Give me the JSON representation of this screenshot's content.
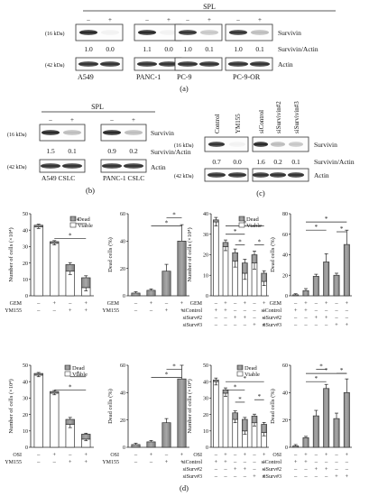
{
  "panel_a": {
    "label": "(a)",
    "treatment": "SPL",
    "signs": [
      "–",
      "+"
    ],
    "kda_survivin": "(16 kDa)",
    "kda_actin": "(42 kDa)",
    "row_survivin": "Survivin",
    "row_ratio": "Survivin/Actin",
    "row_actin": "Actin",
    "cell_lines": [
      "A549",
      "PANC-1",
      "PC-9",
      "PC-9-OR"
    ],
    "ratios": [
      [
        "1.0",
        "0.0"
      ],
      [
        "1.1",
        "0.0"
      ],
      [
        "1.0",
        "0.1"
      ],
      [
        "1.0",
        "0.1"
      ]
    ]
  },
  "panel_b": {
    "label": "(b)",
    "treatment": "SPL",
    "signs": [
      "–",
      "+"
    ],
    "kda_survivin": "(16 kDa)",
    "kda_actin": "(42 kDa)",
    "row_survivin": "Survivin",
    "row_ratio": "Survivin/Actin",
    "row_actin": "Actin",
    "cell_lines": [
      "A549 CSLC",
      "PANC-1 CSLC"
    ],
    "ratios": [
      [
        "1.5",
        "0.1"
      ],
      [
        "0.9",
        "0.2"
      ]
    ]
  },
  "panel_c": {
    "label": "(c)",
    "lane_labels": [
      "Control",
      "YM155",
      "siControl",
      "siSurvivin#2",
      "siSurvivin#3"
    ],
    "kda_survivin": "(16 kDa)",
    "kda_actin": "(42 kDa)",
    "row_survivin": "Survivin",
    "row_ratio": "Survivin/Actin",
    "row_actin": "Actin",
    "ratios": [
      "0.7",
      "0.0",
      "1.6",
      "0.2",
      "0.1"
    ]
  },
  "panel_d": {
    "label": "(d)",
    "legend_dead": "Dead",
    "legend_viable": "Viable",
    "ylabel_number": "Number of cells (×10⁴)",
    "ylabel_dead": "Dead cells (%)",
    "plus": "+",
    "minus": "–",
    "star": "*"
  },
  "chart_data": [
    {
      "type": "bar",
      "id": "gem-ym155-number",
      "stacked": true,
      "ylabel": "Number of cells (×10⁴)",
      "ylim": [
        0,
        50
      ],
      "yticks": [
        0,
        10,
        20,
        30,
        40,
        50
      ],
      "conditions": [
        {
          "name": "GEM",
          "signs": [
            "–",
            "+",
            "–",
            "+"
          ]
        },
        {
          "name": "YM155",
          "signs": [
            "–",
            "–",
            "+",
            "+"
          ]
        }
      ],
      "series": [
        {
          "name": "Viable",
          "values": [
            42,
            32,
            15,
            5
          ]
        },
        {
          "name": "Dead",
          "values": [
            1,
            1,
            4,
            6
          ]
        }
      ],
      "errors": [
        1,
        1,
        2,
        2
      ],
      "significance": [
        [
          1,
          3,
          0.3
        ],
        [
          2,
          3,
          0.12
        ]
      ]
    },
    {
      "type": "bar",
      "id": "gem-ym155-dead",
      "ylabel": "Dead cells (%)",
      "ylim": [
        0,
        60
      ],
      "yticks": [
        0,
        20,
        40,
        60
      ],
      "conditions": [
        {
          "name": "GEM",
          "signs": [
            "–",
            "+",
            "–",
            "+"
          ]
        },
        {
          "name": "YM155",
          "signs": [
            "–",
            "–",
            "+",
            "+"
          ]
        }
      ],
      "series": [
        {
          "name": "Dead",
          "values": [
            2,
            4,
            18,
            40
          ]
        }
      ],
      "errors": [
        1,
        1,
        5,
        12
      ],
      "significance": [
        [
          1,
          3,
          0.15
        ],
        [
          2,
          3,
          0.05
        ]
      ]
    },
    {
      "type": "bar",
      "id": "gem-sisurv-number",
      "stacked": true,
      "ylabel": "Number of cells (×10⁴)",
      "ylim": [
        0,
        40
      ],
      "yticks": [
        0,
        10,
        20,
        30,
        40
      ],
      "conditions": [
        {
          "name": "GEM",
          "signs": [
            "–",
            "+",
            "–",
            "+",
            "–",
            "+"
          ]
        },
        {
          "name": "siControl",
          "signs": [
            "+",
            "+",
            "–",
            "–",
            "–",
            "–"
          ]
        },
        {
          "name": "siSurv#2",
          "signs": [
            "–",
            "–",
            "+",
            "+",
            "–",
            "–"
          ]
        },
        {
          "name": "siSurv#3",
          "signs": [
            "–",
            "–",
            "–",
            "–",
            "+",
            "+"
          ]
        }
      ],
      "series": [
        {
          "name": "Viable",
          "values": [
            36,
            24,
            17,
            11,
            16,
            7
          ]
        },
        {
          "name": "Dead",
          "values": [
            1,
            2,
            4,
            5,
            4,
            4
          ]
        }
      ],
      "errors": [
        2,
        2,
        3,
        3,
        3,
        2
      ],
      "significance": [
        [
          1,
          3,
          0.25
        ],
        [
          1,
          5,
          0.15
        ],
        [
          2,
          3,
          0.38
        ],
        [
          4,
          5,
          0.38
        ]
      ]
    },
    {
      "type": "bar",
      "id": "gem-sisurv-dead",
      "ylabel": "Dead cells (%)",
      "ylim": [
        0,
        80
      ],
      "yticks": [
        0,
        20,
        40,
        60,
        80
      ],
      "conditions": [
        {
          "name": "GEM",
          "signs": [
            "–",
            "+",
            "–",
            "+",
            "–",
            "+"
          ]
        },
        {
          "name": "siControl",
          "signs": [
            "+",
            "+",
            "–",
            "–",
            "–",
            "–"
          ]
        },
        {
          "name": "siSurv#2",
          "signs": [
            "–",
            "–",
            "+",
            "+",
            "–",
            "–"
          ]
        },
        {
          "name": "siSurv#3",
          "signs": [
            "–",
            "–",
            "–",
            "–",
            "+",
            "+"
          ]
        }
      ],
      "series": [
        {
          "name": "Dead",
          "values": [
            1,
            5,
            19,
            33,
            20,
            50
          ]
        }
      ],
      "errors": [
        1,
        2,
        2,
        8,
        2,
        14
      ],
      "significance": [
        [
          1,
          3,
          0.2
        ],
        [
          1,
          5,
          0.1
        ],
        [
          4,
          5,
          0.22
        ]
      ]
    },
    {
      "type": "bar",
      "id": "osi-ym155-number",
      "stacked": true,
      "ylabel": "Number of cells (×10⁴)",
      "ylim": [
        0,
        50
      ],
      "yticks": [
        0,
        10,
        20,
        30,
        40,
        50
      ],
      "conditions": [
        {
          "name": "OSI",
          "signs": [
            "–",
            "+",
            "–",
            "+"
          ]
        },
        {
          "name": "YM155",
          "signs": [
            "–",
            "–",
            "+",
            "+"
          ]
        }
      ],
      "series": [
        {
          "name": "Viable",
          "values": [
            44,
            33,
            14,
            5
          ]
        },
        {
          "name": "Dead",
          "values": [
            1,
            1,
            3,
            3
          ]
        }
      ],
      "errors": [
        1,
        1,
        2,
        1
      ],
      "significance": [
        [
          1,
          3,
          0.3
        ],
        [
          2,
          3,
          0.14
        ]
      ]
    },
    {
      "type": "bar",
      "id": "osi-ym155-dead",
      "ylabel": "Dead cells (%)",
      "ylim": [
        0,
        60
      ],
      "yticks": [
        0,
        20,
        40,
        60
      ],
      "conditions": [
        {
          "name": "OSI",
          "signs": [
            "–",
            "+",
            "–",
            "+"
          ]
        },
        {
          "name": "YM155",
          "signs": [
            "–",
            "–",
            "+",
            "+"
          ]
        }
      ],
      "series": [
        {
          "name": "Dead",
          "values": [
            2,
            4,
            18,
            50
          ]
        }
      ],
      "errors": [
        1,
        1,
        3,
        10
      ],
      "significance": [
        [
          1,
          3,
          0.15
        ],
        [
          2,
          3,
          0.05
        ]
      ]
    },
    {
      "type": "bar",
      "id": "osi-sisurv-number",
      "stacked": true,
      "ylabel": "Number of cells (×10⁴)",
      "ylim": [
        0,
        50
      ],
      "yticks": [
        0,
        10,
        20,
        30,
        40,
        50
      ],
      "conditions": [
        {
          "name": "OSI",
          "signs": [
            "–",
            "+",
            "–",
            "+",
            "–",
            "+"
          ]
        },
        {
          "name": "siControl",
          "signs": [
            "+",
            "+",
            "–",
            "–",
            "–",
            "–"
          ]
        },
        {
          "name": "siSurv#2",
          "signs": [
            "–",
            "–",
            "+",
            "+",
            "–",
            "–"
          ]
        },
        {
          "name": "siSurv#3",
          "signs": [
            "–",
            "–",
            "–",
            "–",
            "+",
            "+"
          ]
        }
      ],
      "series": [
        {
          "name": "Viable",
          "values": [
            40,
            33,
            17,
            10,
            15,
            9
          ]
        },
        {
          "name": "Dead",
          "values": [
            1,
            2,
            4,
            7,
            4,
            5
          ]
        }
      ],
      "errors": [
        2,
        2,
        2,
        2,
        2,
        2
      ],
      "significance": [
        [
          1,
          3,
          0.3
        ],
        [
          1,
          5,
          0.2
        ],
        [
          2,
          3,
          0.45
        ],
        [
          4,
          5,
          0.42
        ]
      ]
    },
    {
      "type": "bar",
      "id": "osi-sisurv-dead",
      "ylabel": "Dead cells (%)",
      "ylim": [
        0,
        60
      ],
      "yticks": [
        0,
        20,
        40,
        60
      ],
      "conditions": [
        {
          "name": "OSI",
          "signs": [
            "–",
            "+",
            "–",
            "+",
            "–",
            "+"
          ]
        },
        {
          "name": "siControl",
          "signs": [
            "+",
            "+",
            "–",
            "–",
            "–",
            "–"
          ]
        },
        {
          "name": "siSurv#2",
          "signs": [
            "–",
            "–",
            "+",
            "+",
            "–",
            "–"
          ]
        },
        {
          "name": "siSurv#3",
          "signs": [
            "–",
            "–",
            "–",
            "–",
            "+",
            "+"
          ]
        }
      ],
      "series": [
        {
          "name": "Dead",
          "values": [
            1,
            7,
            23,
            43,
            21,
            40
          ]
        }
      ],
      "errors": [
        1,
        1,
        4,
        3,
        4,
        10
      ],
      "significance": [
        [
          1,
          3,
          0.2
        ],
        [
          1,
          5,
          0.1
        ],
        [
          2,
          3,
          0.05
        ],
        [
          4,
          5,
          0.1
        ]
      ]
    }
  ]
}
